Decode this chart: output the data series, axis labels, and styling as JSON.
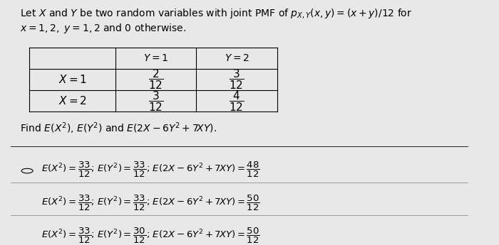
{
  "bg_color": "#e8e8e8",
  "title_line1": "Let $X$ and $Y$ be two random variables with joint PMF of $p_{X,Y}(x,y) = (x+y)/12$ for",
  "title_line2": "$x = 1, 2,\\ y = 1, 2$ and $0$ otherwise.",
  "find_text": "Find $E\\left(X^2\\right)$, $E\\left(Y^2\\right)$ and $E\\left(2X - 6Y^2 + 7XY\\right)$.",
  "table_header": [
    "",
    "$Y = 1$",
    "$Y = 2$"
  ],
  "table_rows": [
    [
      "$X = 1$",
      "$\\dfrac{2}{12}$",
      "$\\dfrac{3}{12}$"
    ],
    [
      "$X = 2$",
      "$\\dfrac{3}{12}$",
      "$\\dfrac{4}{12}$"
    ]
  ],
  "options": [
    "$E\\left(X^2\\right) = \\dfrac{33}{12}$; $E\\left(Y^2\\right) = \\dfrac{33}{12}$; $E\\left(2X - 6Y^2 + 7XY\\right) = \\dfrac{48}{12}$",
    "$E\\left(X^2\\right) = \\dfrac{33}{12}$; $E\\left(Y^2\\right) = \\dfrac{33}{12}$; $E\\left(2X - 6Y^2 + 7XY\\right) = \\dfrac{50}{12}$",
    "$E\\left(X^2\\right) = \\dfrac{33}{12}$; $E\\left(Y^2\\right) = \\dfrac{30}{12}$; $E\\left(2X - 6Y^2 + 7XY\\right) = \\dfrac{50}{12}$"
  ],
  "selected_option": 1,
  "font_size_text": 10,
  "font_size_table": 10,
  "font_size_options": 9.5
}
